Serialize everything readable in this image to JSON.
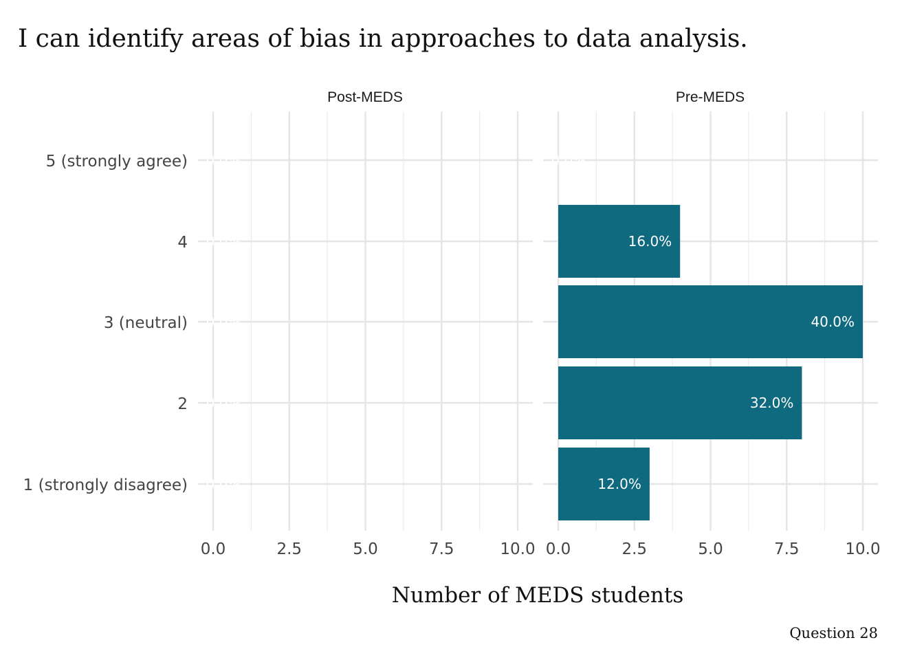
{
  "chart_data": {
    "type": "bar",
    "orientation": "horizontal",
    "title": "I can identify areas of bias in approaches to data analysis.",
    "xlabel": "Number of MEDS students",
    "ylabel": "",
    "caption": "Question 28",
    "categories": [
      "5 (strongly agree)",
      "4",
      "3 (neutral)",
      "2",
      "1 (strongly disagree)"
    ],
    "xlim": [
      0,
      10
    ],
    "xticks": [
      "0.0",
      "2.5",
      "5.0",
      "7.5",
      "10.0"
    ],
    "bar_color": "#106a7f",
    "facets": [
      {
        "name": "Post-MEDS",
        "values": [
          0,
          0,
          0,
          0,
          0
        ],
        "labels": [
          "0.0%",
          "0.0%",
          "0.0%",
          "0.0%",
          "0.0%"
        ]
      },
      {
        "name": "Pre-MEDS",
        "values": [
          0,
          4,
          10,
          8,
          3
        ],
        "labels": [
          "0.0%",
          "16.0%",
          "40.0%",
          "32.0%",
          "12.0%"
        ]
      }
    ]
  }
}
